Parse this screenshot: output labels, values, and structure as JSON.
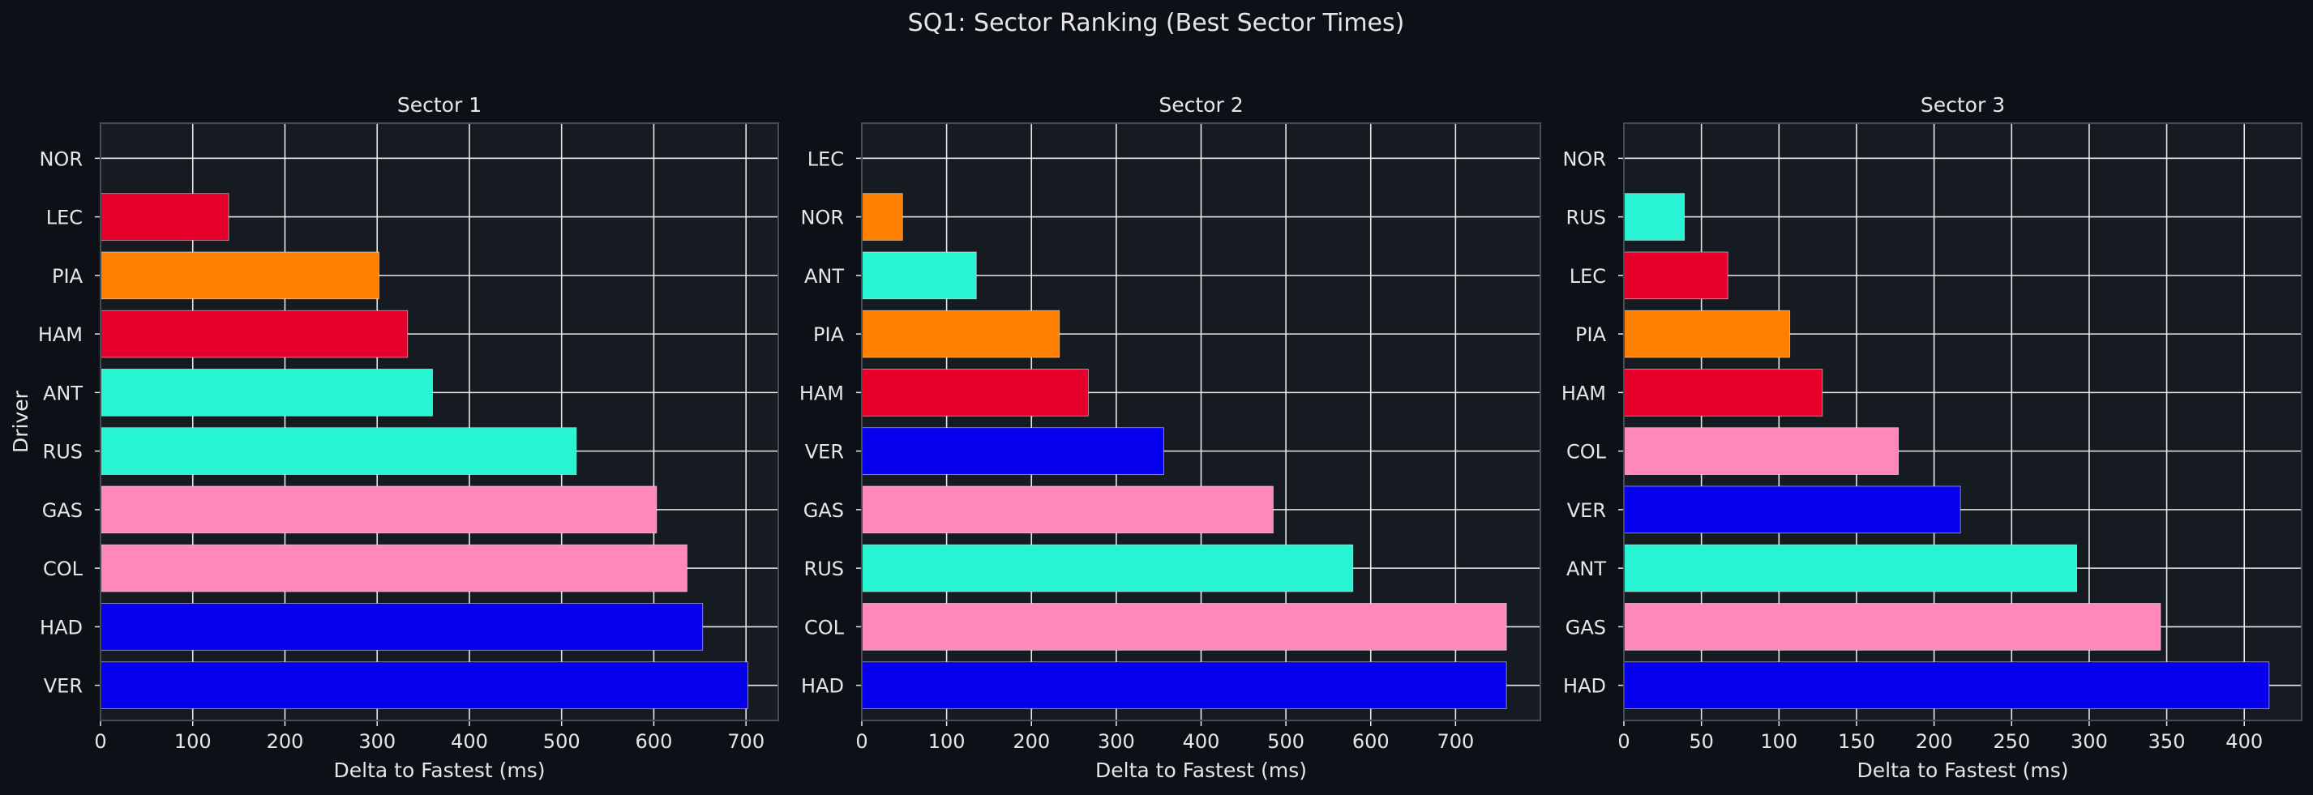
{
  "figure": {
    "title": "SQ1: Sector Ranking (Best Sector Times)",
    "background": "#0d1117",
    "axes_background": "#161b22",
    "grid_color": "#ffffff",
    "spine_color": "#444c56",
    "text_color": "#e6e6e6"
  },
  "chart_data": [
    {
      "type": "bar",
      "orientation": "horizontal",
      "title": "Sector 1",
      "xlabel": "Delta to Fastest (ms)",
      "ylabel": "Driver",
      "xlim": [
        0,
        735
      ],
      "xticks": [
        0,
        100,
        200,
        300,
        400,
        500,
        600,
        700
      ],
      "grid": true,
      "categories": [
        "NOR",
        "LEC",
        "PIA",
        "HAM",
        "ANT",
        "RUS",
        "GAS",
        "COL",
        "HAD",
        "VER"
      ],
      "values": [
        0,
        139,
        302,
        333,
        360,
        516,
        603,
        636,
        653,
        702
      ],
      "colors": [
        "#FF8000",
        "#E8002D",
        "#FF8000",
        "#E8002D",
        "#27F4D2",
        "#27F4D2",
        "#FF87BC",
        "#FF87BC",
        "#0600EF",
        "#0600EF"
      ]
    },
    {
      "type": "bar",
      "orientation": "horizontal",
      "title": "Sector 2",
      "xlabel": "Delta to Fastest (ms)",
      "ylabel": "",
      "xlim": [
        0,
        800
      ],
      "xticks": [
        0,
        100,
        200,
        300,
        400,
        500,
        600,
        700
      ],
      "grid": true,
      "categories": [
        "LEC",
        "NOR",
        "ANT",
        "PIA",
        "HAM",
        "VER",
        "GAS",
        "RUS",
        "COL",
        "HAD"
      ],
      "values": [
        0,
        48,
        135,
        233,
        267,
        356,
        485,
        579,
        760,
        760
      ],
      "colors": [
        "#E8002D",
        "#FF8000",
        "#27F4D2",
        "#FF8000",
        "#E8002D",
        "#0600EF",
        "#FF87BC",
        "#27F4D2",
        "#FF87BC",
        "#0600EF"
      ]
    },
    {
      "type": "bar",
      "orientation": "horizontal",
      "title": "Sector 3",
      "xlabel": "Delta to Fastest (ms)",
      "ylabel": "",
      "xlim": [
        0,
        437
      ],
      "xticks": [
        0,
        50,
        100,
        150,
        200,
        250,
        300,
        350,
        400
      ],
      "grid": true,
      "categories": [
        "NOR",
        "RUS",
        "LEC",
        "PIA",
        "HAM",
        "COL",
        "VER",
        "ANT",
        "GAS",
        "HAD"
      ],
      "values": [
        0,
        39,
        67,
        107,
        128,
        177,
        217,
        292,
        346,
        416
      ],
      "colors": [
        "#FF8000",
        "#27F4D2",
        "#E8002D",
        "#FF8000",
        "#E8002D",
        "#FF87BC",
        "#0600EF",
        "#27F4D2",
        "#FF87BC",
        "#0600EF"
      ]
    }
  ]
}
